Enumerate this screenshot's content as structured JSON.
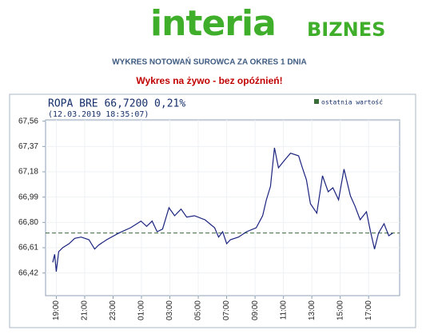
{
  "logo": {
    "name": "interia",
    "section": "BIZNES"
  },
  "heading": "WYKRES NOTOWAŃ SUROWCA ZA OKRES 1 DNIA",
  "live_note": "Wykres na żywo - bez opóźnień!",
  "chart_data": {
    "type": "line",
    "title": "ROPA BRE 66,7200 0,21%",
    "subtitle": "(12.03.2019 18:35:07)",
    "last_value_label": "ostatnia wartość",
    "last_value": 66.72,
    "last_value_color": "#3a6b3a",
    "xlim": [
      "18:45",
      "18:44"
    ],
    "xticks": [
      "19:00",
      "21:00",
      "23:00",
      "01:00",
      "03:00",
      "05:00",
      "07:00",
      "09:00",
      "11:00",
      "13:00",
      "15:00",
      "17:00"
    ],
    "ylim": [
      66.25,
      67.57
    ],
    "yticks": [
      {
        "value": 66.42,
        "label": "66,42"
      },
      {
        "value": 66.61,
        "label": "66,61"
      },
      {
        "value": 66.8,
        "label": "66,80"
      },
      {
        "value": 66.99,
        "label": "66,99"
      },
      {
        "value": 67.18,
        "label": "67,18"
      },
      {
        "value": 67.37,
        "label": "67,37"
      },
      {
        "value": 67.56,
        "label": "67,56"
      }
    ],
    "x": [
      "18:45",
      "18:53",
      "19:00",
      "19:10",
      "19:27",
      "19:54",
      "20:18",
      "20:45",
      "21:18",
      "21:42",
      "21:59",
      "22:33",
      "23:24",
      "00:14",
      "00:58",
      "01:22",
      "01:45",
      "02:06",
      "02:29",
      "02:56",
      "03:20",
      "03:47",
      "04:11",
      "04:44",
      "05:28",
      "06:09",
      "06:26",
      "06:43",
      "07:00",
      "07:16",
      "07:50",
      "08:24",
      "09:05",
      "09:32",
      "09:48",
      "10:05",
      "10:22",
      "10:39",
      "11:06",
      "11:30",
      "12:04",
      "12:20",
      "12:37",
      "12:54",
      "13:21",
      "13:45",
      "14:09",
      "14:29",
      "14:53",
      "15:16",
      "15:43",
      "16:03",
      "16:24",
      "16:51",
      "17:08",
      "17:25",
      "17:42",
      "18:05",
      "18:25",
      "18:42"
    ],
    "series": [
      {
        "name": "ROPA BRE",
        "color": "#1a237e",
        "values": [
          66.5,
          66.56,
          66.43,
          66.58,
          66.61,
          66.64,
          66.68,
          66.69,
          66.67,
          66.6,
          66.63,
          66.67,
          66.72,
          66.76,
          66.81,
          66.77,
          66.81,
          66.73,
          66.75,
          66.91,
          66.85,
          66.9,
          66.84,
          66.85,
          66.82,
          66.76,
          66.69,
          66.73,
          66.64,
          66.67,
          66.69,
          66.73,
          66.76,
          66.85,
          66.97,
          67.07,
          67.36,
          67.21,
          67.27,
          67.32,
          67.3,
          67.21,
          67.12,
          66.94,
          66.87,
          67.15,
          67.03,
          67.06,
          66.97,
          67.2,
          67.0,
          66.92,
          66.82,
          66.88,
          66.73,
          66.6,
          66.72,
          66.79,
          66.7,
          66.72
        ]
      }
    ],
    "grid": true
  }
}
